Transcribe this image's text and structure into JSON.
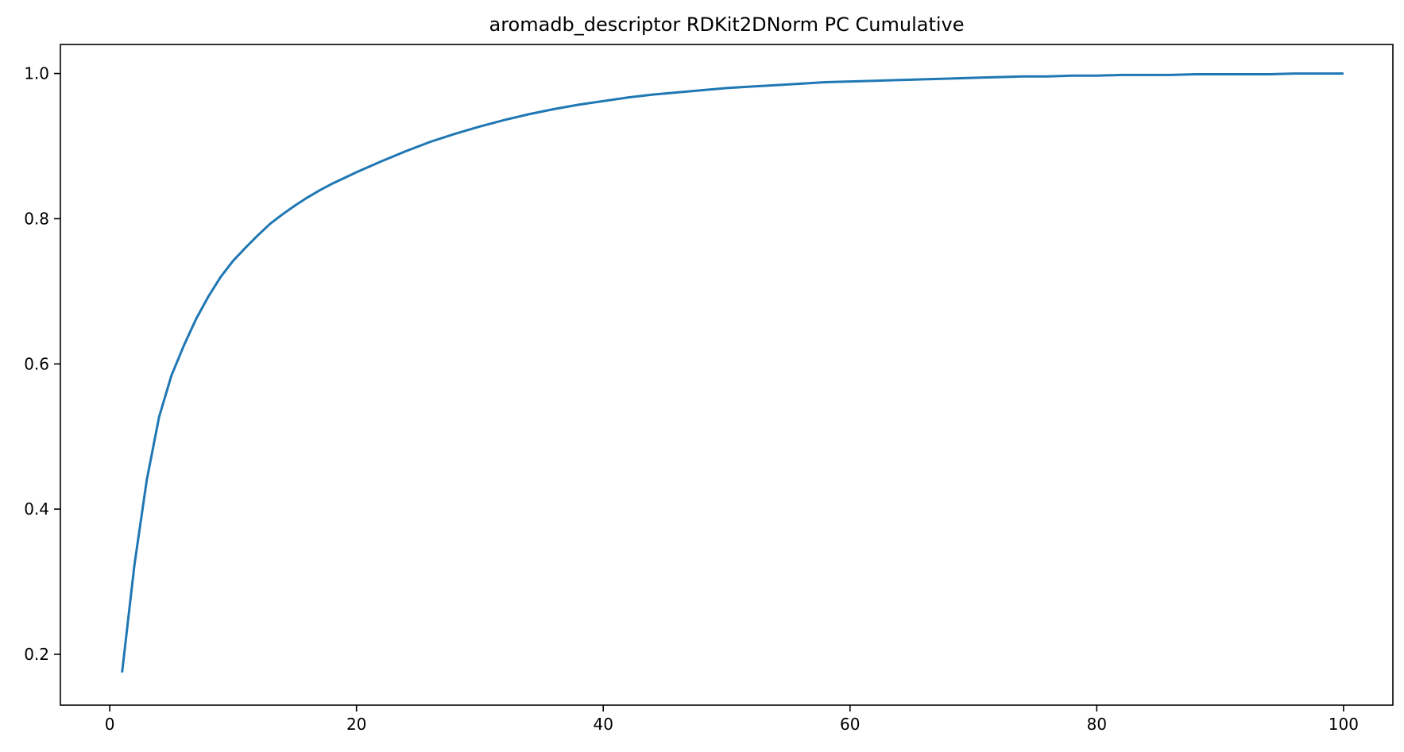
{
  "chart_data": {
    "type": "line",
    "title": "aromadb_descriptor RDKit2DNorm PC Cumulative",
    "xlabel": "",
    "ylabel": "",
    "xlim": [
      -4,
      104
    ],
    "ylim": [
      0.13,
      1.04
    ],
    "xticks": [
      0,
      20,
      40,
      60,
      80,
      100
    ],
    "yticks": [
      0.2,
      0.4,
      0.6,
      0.8,
      1.0
    ],
    "xtick_labels": [
      "0",
      "20",
      "40",
      "60",
      "80",
      "100"
    ],
    "ytick_labels": [
      "0.2",
      "0.4",
      "0.6",
      "0.8",
      "1.0"
    ],
    "grid": false,
    "legend": "none",
    "line_color": "#1f77b4",
    "series": [
      {
        "x": [
          1,
          2,
          3,
          4,
          5,
          6,
          7,
          8,
          9,
          10,
          11,
          12,
          13,
          14,
          15,
          16,
          17,
          18,
          19,
          20,
          22,
          24,
          26,
          28,
          30,
          32,
          34,
          36,
          38,
          40,
          42,
          44,
          46,
          48,
          50,
          52,
          54,
          56,
          58,
          60,
          62,
          64,
          66,
          68,
          70,
          72,
          74,
          76,
          78,
          80,
          82,
          84,
          86,
          88,
          90,
          92,
          94,
          96,
          98,
          100
        ],
        "values": [
          0.175,
          0.323,
          0.44,
          0.527,
          0.584,
          0.625,
          0.662,
          0.693,
          0.72,
          0.742,
          0.76,
          0.777,
          0.793,
          0.806,
          0.818,
          0.829,
          0.839,
          0.848,
          0.856,
          0.864,
          0.879,
          0.893,
          0.906,
          0.917,
          0.927,
          0.936,
          0.944,
          0.951,
          0.957,
          0.962,
          0.967,
          0.971,
          0.974,
          0.977,
          0.98,
          0.982,
          0.984,
          0.986,
          0.988,
          0.989,
          0.99,
          0.991,
          0.992,
          0.993,
          0.994,
          0.995,
          0.996,
          0.996,
          0.997,
          0.997,
          0.998,
          0.998,
          0.998,
          0.999,
          0.999,
          0.999,
          0.999,
          1.0,
          1.0,
          1.0
        ]
      }
    ]
  }
}
